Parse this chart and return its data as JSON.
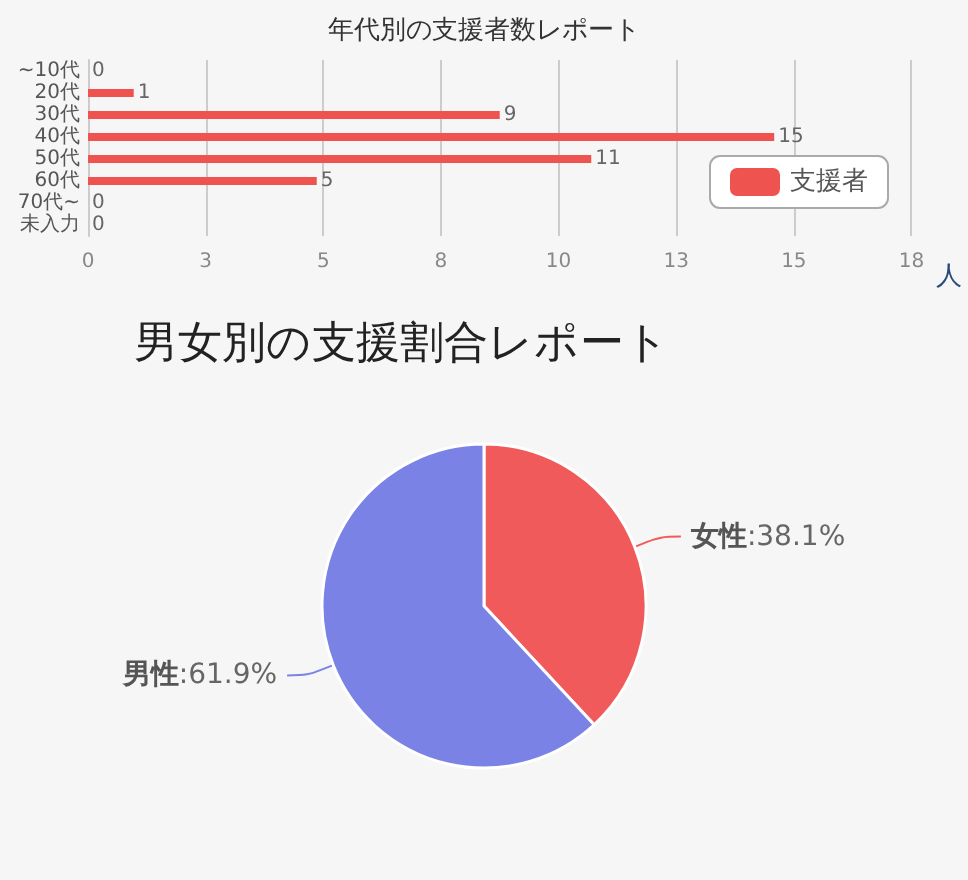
{
  "chart_data": [
    {
      "type": "bar",
      "title": "年代別の支援者数レポート",
      "orientation": "horizontal",
      "categories": [
        "~10代",
        "20代",
        "30代",
        "40代",
        "50代",
        "60代",
        "70代~",
        "未入力"
      ],
      "series": [
        {
          "name": "支援者",
          "color": "#ef5350",
          "values": [
            0,
            1,
            9,
            15,
            11,
            5,
            0,
            0
          ]
        }
      ],
      "xlabel": "人",
      "xlim": [
        0,
        18
      ],
      "xticks": [
        0,
        {
          "value": 2.571,
          "label": "3"
        },
        {
          "value": 5.143,
          "label": "5"
        },
        {
          "value": 7.714,
          "label": "8"
        },
        {
          "value": 10.286,
          "label": "10"
        },
        {
          "value": 12.857,
          "label": "13"
        },
        {
          "value": 15.429,
          "label": "15"
        },
        18
      ],
      "grid": "x",
      "data_labels": true,
      "legend": "right"
    },
    {
      "type": "pie",
      "title": "男女別の支援割合レポート",
      "categories": [
        "女性",
        "男性"
      ],
      "values": [
        38.1,
        61.9
      ],
      "colors": [
        "#f05a5a",
        "#7b82e6"
      ],
      "value_labels": [
        ":38.1%",
        ":61.9%"
      ]
    }
  ]
}
